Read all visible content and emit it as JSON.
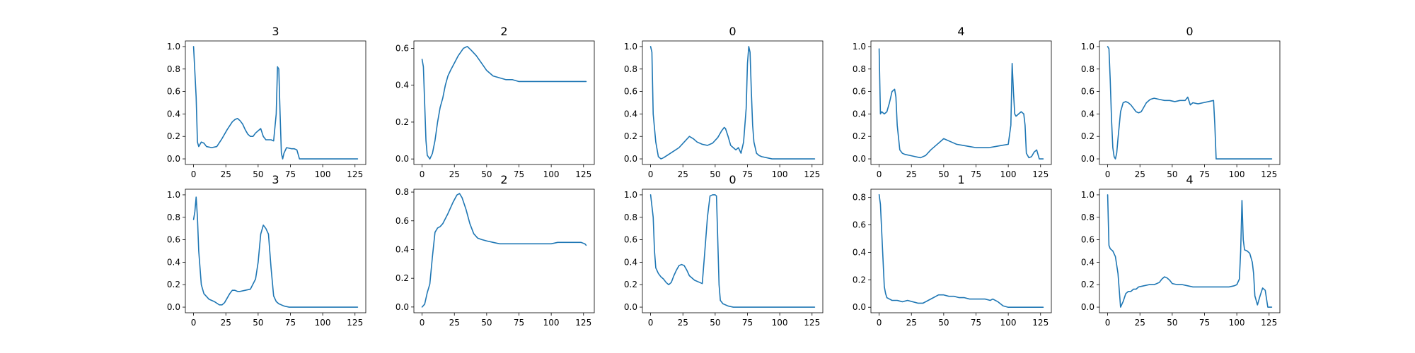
{
  "chart_data": [
    {
      "type": "line",
      "title": "3",
      "xlim": [
        -6.35,
        133.35
      ],
      "ylim": [
        -0.05,
        1.05
      ],
      "xticks": [
        0,
        25,
        50,
        75,
        100,
        125
      ],
      "yticks": [
        0.0,
        0.2,
        0.4,
        0.6,
        0.8,
        1.0
      ],
      "color": "#1f77b4",
      "series": [
        {
          "x": [
            0,
            2,
            3,
            4,
            6,
            8,
            10,
            14,
            18,
            22,
            26,
            30,
            32,
            34,
            36,
            38,
            40,
            42,
            44,
            46,
            48,
            50,
            52,
            54,
            56,
            58,
            60,
            62,
            64,
            65,
            66,
            67,
            68,
            69,
            70,
            72,
            76,
            78,
            80,
            82,
            127
          ],
          "y": [
            1.0,
            0.55,
            0.15,
            0.11,
            0.15,
            0.14,
            0.11,
            0.1,
            0.11,
            0.18,
            0.26,
            0.33,
            0.35,
            0.36,
            0.34,
            0.31,
            0.26,
            0.22,
            0.2,
            0.2,
            0.23,
            0.25,
            0.27,
            0.2,
            0.17,
            0.17,
            0.17,
            0.16,
            0.4,
            0.82,
            0.8,
            0.4,
            0.05,
            0.0,
            0.05,
            0.1,
            0.09,
            0.09,
            0.08,
            0.0,
            0.0
          ]
        }
      ]
    },
    {
      "type": "line",
      "title": "2",
      "xlim": [
        -6.35,
        133.35
      ],
      "ylim": [
        -0.03,
        0.64
      ],
      "xticks": [
        0,
        25,
        50,
        75,
        100,
        125
      ],
      "yticks": [
        0.0,
        0.2,
        0.4,
        0.6
      ],
      "color": "#1f77b4",
      "series": [
        {
          "x": [
            0,
            1,
            2,
            3,
            4,
            6,
            8,
            10,
            12,
            14,
            16,
            18,
            20,
            22,
            25,
            28,
            32,
            35,
            38,
            42,
            46,
            50,
            55,
            60,
            65,
            70,
            75,
            80,
            85,
            90,
            95,
            100,
            105,
            110,
            115,
            120,
            125,
            127
          ],
          "y": [
            0.54,
            0.5,
            0.3,
            0.1,
            0.02,
            0.0,
            0.03,
            0.1,
            0.2,
            0.28,
            0.33,
            0.4,
            0.45,
            0.48,
            0.52,
            0.56,
            0.6,
            0.61,
            0.59,
            0.56,
            0.52,
            0.48,
            0.45,
            0.44,
            0.43,
            0.43,
            0.42,
            0.42,
            0.42,
            0.42,
            0.42,
            0.42,
            0.42,
            0.42,
            0.42,
            0.42,
            0.42,
            0.42
          ]
        }
      ]
    },
    {
      "type": "line",
      "title": "0",
      "xlim": [
        -6.35,
        133.35
      ],
      "ylim": [
        -0.05,
        1.05
      ],
      "xticks": [
        0,
        25,
        50,
        75,
        100,
        125
      ],
      "yticks": [
        0.0,
        0.2,
        0.4,
        0.6,
        0.8,
        1.0
      ],
      "color": "#1f77b4",
      "series": [
        {
          "x": [
            0,
            1,
            2,
            4,
            6,
            8,
            10,
            14,
            18,
            22,
            26,
            30,
            33,
            36,
            40,
            44,
            48,
            52,
            55,
            57,
            58,
            60,
            62,
            64,
            66,
            68,
            70,
            72,
            74,
            75,
            76,
            77,
            78,
            79,
            80,
            82,
            84,
            86,
            90,
            94,
            127
          ],
          "y": [
            1.0,
            0.95,
            0.4,
            0.15,
            0.02,
            0.0,
            0.01,
            0.04,
            0.07,
            0.1,
            0.15,
            0.2,
            0.18,
            0.15,
            0.13,
            0.12,
            0.14,
            0.19,
            0.25,
            0.28,
            0.27,
            0.2,
            0.12,
            0.1,
            0.08,
            0.1,
            0.05,
            0.15,
            0.45,
            0.85,
            1.0,
            0.95,
            0.6,
            0.3,
            0.15,
            0.05,
            0.03,
            0.02,
            0.01,
            0.0,
            0.0
          ]
        }
      ]
    },
    {
      "type": "line",
      "title": "4",
      "xlim": [
        -6.35,
        133.35
      ],
      "ylim": [
        -0.05,
        1.05
      ],
      "xticks": [
        0,
        25,
        50,
        75,
        100,
        125
      ],
      "yticks": [
        0.0,
        0.2,
        0.4,
        0.6,
        0.8,
        1.0
      ],
      "color": "#1f77b4",
      "series": [
        {
          "x": [
            0,
            1,
            2,
            4,
            6,
            8,
            10,
            12,
            13,
            14,
            16,
            18,
            20,
            24,
            28,
            32,
            36,
            40,
            44,
            48,
            50,
            52,
            56,
            60,
            65,
            70,
            75,
            80,
            85,
            90,
            95,
            100,
            102,
            103,
            104,
            105,
            106,
            108,
            110,
            112,
            113,
            114,
            116,
            118,
            120,
            122,
            124,
            127
          ],
          "y": [
            0.98,
            0.4,
            0.42,
            0.4,
            0.42,
            0.5,
            0.6,
            0.62,
            0.55,
            0.3,
            0.08,
            0.05,
            0.04,
            0.03,
            0.02,
            0.01,
            0.03,
            0.08,
            0.12,
            0.16,
            0.18,
            0.17,
            0.15,
            0.13,
            0.12,
            0.11,
            0.1,
            0.1,
            0.1,
            0.11,
            0.12,
            0.13,
            0.3,
            0.85,
            0.6,
            0.4,
            0.38,
            0.4,
            0.42,
            0.4,
            0.3,
            0.05,
            0.01,
            0.02,
            0.06,
            0.08,
            0.0,
            0.0
          ]
        }
      ]
    },
    {
      "type": "line",
      "title": "0",
      "xlim": [
        -6.35,
        133.35
      ],
      "ylim": [
        -0.05,
        1.05
      ],
      "xticks": [
        0,
        25,
        50,
        75,
        100,
        125
      ],
      "yticks": [
        0.0,
        0.2,
        0.4,
        0.6,
        0.8,
        1.0
      ],
      "color": "#1f77b4",
      "series": [
        {
          "x": [
            0,
            1,
            2,
            3,
            4,
            5,
            6,
            7,
            8,
            10,
            12,
            14,
            16,
            18,
            20,
            22,
            24,
            26,
            28,
            30,
            33,
            36,
            40,
            44,
            48,
            52,
            56,
            60,
            62,
            64,
            66,
            70,
            74,
            78,
            82,
            83,
            84,
            127
          ],
          "y": [
            1.0,
            0.98,
            0.7,
            0.35,
            0.1,
            0.02,
            0.0,
            0.05,
            0.18,
            0.42,
            0.5,
            0.51,
            0.5,
            0.48,
            0.45,
            0.42,
            0.41,
            0.42,
            0.46,
            0.5,
            0.53,
            0.54,
            0.53,
            0.52,
            0.52,
            0.51,
            0.52,
            0.52,
            0.55,
            0.48,
            0.5,
            0.49,
            0.5,
            0.51,
            0.52,
            0.3,
            0.0,
            0.0
          ]
        }
      ]
    },
    {
      "type": "line",
      "title": "3",
      "xlim": [
        -6.35,
        133.35
      ],
      "ylim": [
        -0.05,
        1.05
      ],
      "xticks": [
        0,
        25,
        50,
        75,
        100,
        125
      ],
      "yticks": [
        0.0,
        0.2,
        0.4,
        0.6,
        0.8,
        1.0
      ],
      "color": "#1f77b4",
      "series": [
        {
          "x": [
            0,
            1,
            2,
            3,
            4,
            6,
            8,
            12,
            16,
            20,
            22,
            24,
            26,
            28,
            30,
            32,
            34,
            36,
            40,
            44,
            48,
            50,
            52,
            54,
            56,
            58,
            60,
            62,
            64,
            66,
            70,
            74,
            80,
            127
          ],
          "y": [
            0.78,
            0.85,
            0.98,
            0.8,
            0.5,
            0.2,
            0.12,
            0.07,
            0.05,
            0.02,
            0.02,
            0.04,
            0.08,
            0.12,
            0.15,
            0.15,
            0.14,
            0.14,
            0.15,
            0.16,
            0.25,
            0.4,
            0.65,
            0.73,
            0.7,
            0.65,
            0.35,
            0.1,
            0.05,
            0.03,
            0.01,
            0.0,
            0.0,
            0.0
          ]
        }
      ]
    },
    {
      "type": "line",
      "title": "2",
      "xlim": [
        -6.35,
        133.35
      ],
      "ylim": [
        -0.04,
        0.82
      ],
      "xticks": [
        0,
        25,
        50,
        75,
        100,
        125
      ],
      "yticks": [
        0.0,
        0.2,
        0.4,
        0.6,
        0.8
      ],
      "color": "#1f77b4",
      "series": [
        {
          "x": [
            0,
            2,
            4,
            6,
            8,
            10,
            12,
            14,
            16,
            20,
            24,
            27,
            29,
            31,
            34,
            37,
            40,
            43,
            46,
            50,
            55,
            60,
            65,
            70,
            75,
            80,
            85,
            90,
            95,
            100,
            105,
            110,
            115,
            120,
            123,
            126,
            127
          ],
          "y": [
            0.0,
            0.02,
            0.1,
            0.16,
            0.35,
            0.52,
            0.55,
            0.56,
            0.58,
            0.65,
            0.73,
            0.78,
            0.79,
            0.76,
            0.68,
            0.58,
            0.51,
            0.48,
            0.47,
            0.46,
            0.45,
            0.44,
            0.44,
            0.44,
            0.44,
            0.44,
            0.44,
            0.44,
            0.44,
            0.44,
            0.45,
            0.45,
            0.45,
            0.45,
            0.45,
            0.44,
            0.43
          ]
        }
      ]
    },
    {
      "type": "line",
      "title": "0",
      "xlim": [
        -6.35,
        133.35
      ],
      "ylim": [
        -0.05,
        1.05
      ],
      "xticks": [
        0,
        25,
        50,
        75,
        100,
        125
      ],
      "yticks": [
        0.0,
        0.2,
        0.4,
        0.6,
        0.8,
        1.0
      ],
      "color": "#1f77b4",
      "series": [
        {
          "x": [
            0,
            2,
            3,
            4,
            6,
            8,
            10,
            12,
            14,
            16,
            18,
            20,
            22,
            24,
            26,
            28,
            30,
            34,
            38,
            40,
            42,
            44,
            46,
            48,
            50,
            51,
            52,
            53,
            54,
            56,
            60,
            64,
            70,
            80,
            100,
            127
          ],
          "y": [
            1.0,
            0.8,
            0.5,
            0.35,
            0.3,
            0.27,
            0.25,
            0.22,
            0.2,
            0.22,
            0.28,
            0.33,
            0.37,
            0.38,
            0.37,
            0.33,
            0.28,
            0.24,
            0.22,
            0.21,
            0.5,
            0.8,
            0.99,
            1.0,
            1.0,
            0.99,
            0.6,
            0.2,
            0.06,
            0.03,
            0.01,
            0.0,
            0.0,
            0.0,
            0.0,
            0.0
          ]
        }
      ]
    },
    {
      "type": "line",
      "title": "1",
      "xlim": [
        -6.35,
        133.35
      ],
      "ylim": [
        -0.04,
        0.86
      ],
      "xticks": [
        0,
        25,
        50,
        75,
        100,
        125
      ],
      "yticks": [
        0.0,
        0.2,
        0.4,
        0.6,
        0.8
      ],
      "color": "#1f77b4",
      "series": [
        {
          "x": [
            0,
            1,
            2,
            3,
            4,
            5,
            6,
            8,
            10,
            14,
            18,
            22,
            26,
            30,
            34,
            38,
            42,
            46,
            50,
            54,
            58,
            62,
            66,
            70,
            74,
            78,
            82,
            86,
            88,
            92,
            96,
            100,
            110,
            120,
            127
          ],
          "y": [
            0.82,
            0.75,
            0.55,
            0.35,
            0.15,
            0.1,
            0.07,
            0.06,
            0.05,
            0.05,
            0.04,
            0.05,
            0.04,
            0.03,
            0.03,
            0.05,
            0.07,
            0.09,
            0.09,
            0.08,
            0.08,
            0.07,
            0.07,
            0.06,
            0.06,
            0.06,
            0.06,
            0.05,
            0.06,
            0.04,
            0.01,
            0.0,
            0.0,
            0.0,
            0.0
          ]
        }
      ]
    },
    {
      "type": "line",
      "title": "4",
      "xlim": [
        -6.35,
        133.35
      ],
      "ylim": [
        -0.05,
        1.05
      ],
      "xticks": [
        0,
        25,
        50,
        75,
        100,
        125
      ],
      "yticks": [
        0.0,
        0.2,
        0.4,
        0.6,
        0.8,
        1.0
      ],
      "color": "#1f77b4",
      "series": [
        {
          "x": [
            0,
            1,
            2,
            4,
            6,
            8,
            10,
            12,
            14,
            16,
            18,
            20,
            22,
            24,
            28,
            32,
            36,
            40,
            42,
            44,
            46,
            48,
            50,
            54,
            58,
            62,
            66,
            70,
            74,
            78,
            82,
            86,
            90,
            94,
            98,
            100,
            102,
            103,
            104,
            105,
            106,
            108,
            110,
            112,
            113,
            114,
            116,
            118,
            120,
            122,
            124,
            127
          ],
          "y": [
            1.0,
            0.55,
            0.52,
            0.5,
            0.45,
            0.3,
            0.0,
            0.05,
            0.12,
            0.14,
            0.14,
            0.16,
            0.16,
            0.18,
            0.19,
            0.2,
            0.2,
            0.22,
            0.25,
            0.27,
            0.26,
            0.24,
            0.21,
            0.2,
            0.2,
            0.19,
            0.18,
            0.18,
            0.18,
            0.18,
            0.18,
            0.18,
            0.18,
            0.18,
            0.19,
            0.2,
            0.25,
            0.5,
            0.95,
            0.6,
            0.51,
            0.5,
            0.48,
            0.4,
            0.3,
            0.1,
            0.02,
            0.1,
            0.17,
            0.15,
            0.0,
            0.0
          ]
        }
      ]
    }
  ]
}
